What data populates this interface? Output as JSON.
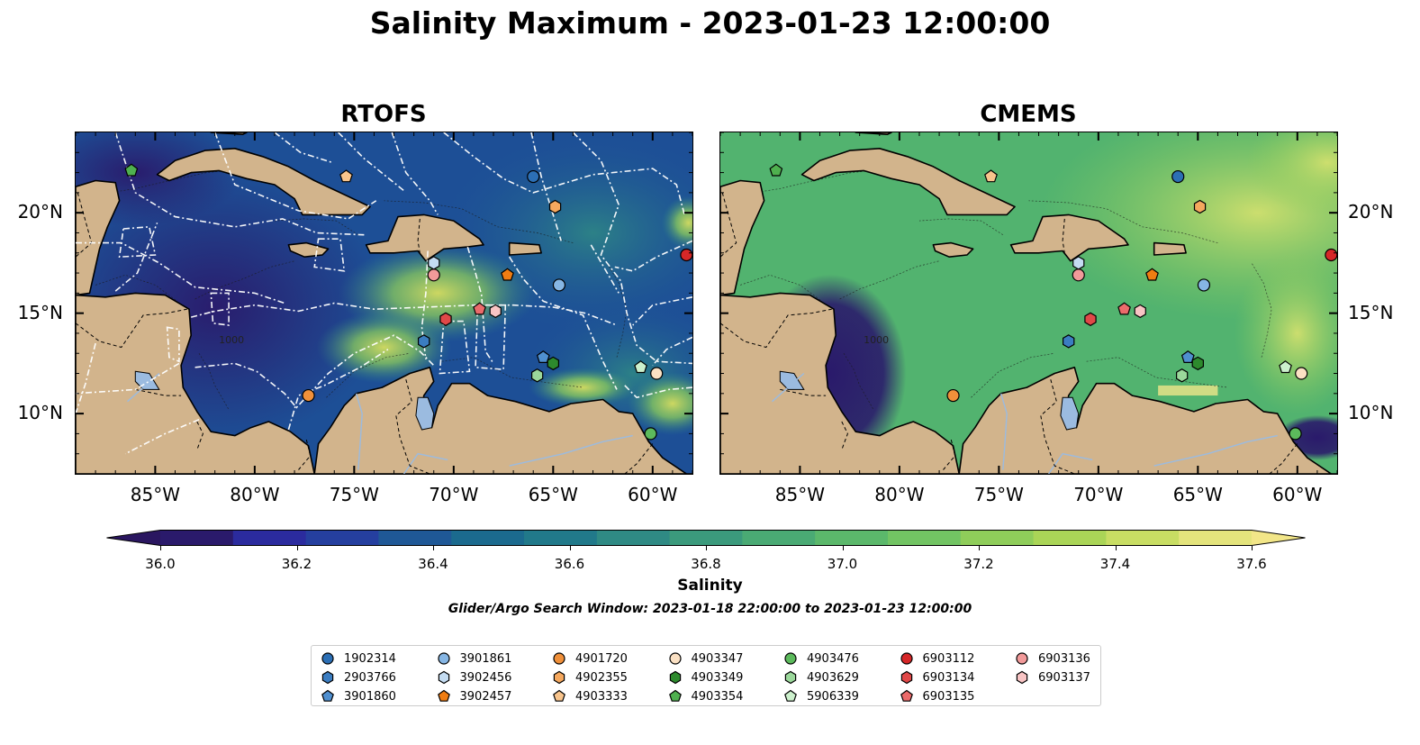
{
  "title": "Salinity Maximum - 2023-01-23 12:00:00",
  "panels": [
    {
      "title": "RTOFS",
      "style": "rtofs"
    },
    {
      "title": "CMEMS",
      "style": "cmems"
    }
  ],
  "map_extent": {
    "lon": [
      -89,
      -58
    ],
    "lat": [
      7,
      24
    ]
  },
  "x_ticks": [
    {
      "lon": -85,
      "label": "85°W"
    },
    {
      "lon": -80,
      "label": "80°W"
    },
    {
      "lon": -75,
      "label": "75°W"
    },
    {
      "lon": -70,
      "label": "70°W"
    },
    {
      "lon": -65,
      "label": "65°W"
    },
    {
      "lon": -60,
      "label": "60°W"
    }
  ],
  "y_ticks": [
    {
      "lat": 20,
      "label": "20°N"
    },
    {
      "lat": 15,
      "label": "15°N"
    },
    {
      "lat": 10,
      "label": "10°N"
    }
  ],
  "colorbar": {
    "label": "Salinity",
    "min": 36.0,
    "max": 37.6,
    "ticks": [
      "36.0",
      "36.2",
      "36.4",
      "36.6",
      "36.8",
      "37.0",
      "37.2",
      "37.4",
      "37.6"
    ],
    "colors": [
      "#2a1a6b",
      "#2b2b9e",
      "#253f9f",
      "#1f5896",
      "#1b6a8e",
      "#21798a",
      "#2f8a84",
      "#3b9a7c",
      "#4aaa74",
      "#5bb86b",
      "#72c463",
      "#8fcd5a",
      "#aad557",
      "#c8dd63",
      "#e4e47c"
    ],
    "under_color": "#2a1660",
    "over_color": "#f2e688"
  },
  "search_window": "Glider/Argo Search Window: 2023-01-18 22:00:00 to 2023-01-23 12:00:00",
  "contour_label": "1000",
  "land_color": "#d2b48c",
  "lake_color": "#9bbbe0",
  "floats": [
    {
      "id": "1902314",
      "marker": "circle",
      "color": "#2c6fb5",
      "lon": -66.0,
      "lat": 21.8
    },
    {
      "id": "2903766",
      "marker": "hexagon",
      "color": "#3b7dc1",
      "lon": -71.5,
      "lat": 13.6
    },
    {
      "id": "3901860",
      "marker": "pentagon",
      "color": "#4f8fcf",
      "lon": -65.5,
      "lat": 12.8
    },
    {
      "id": "3901861",
      "marker": "circle",
      "color": "#86b6e4",
      "lon": -64.7,
      "lat": 16.4
    },
    {
      "id": "3902456",
      "marker": "hexagon",
      "color": "#c4dcf2",
      "lon": -71.0,
      "lat": 17.5
    },
    {
      "id": "3902457",
      "marker": "pentagon",
      "color": "#f07d12",
      "lon": -67.3,
      "lat": 16.9
    },
    {
      "id": "4901720",
      "marker": "circle",
      "color": "#f0903a",
      "lon": -77.3,
      "lat": 10.9
    },
    {
      "id": "4902355",
      "marker": "hexagon",
      "color": "#f5a85e",
      "lon": -64.9,
      "lat": 20.3
    },
    {
      "id": "4903333",
      "marker": "pentagon",
      "color": "#f8c48c",
      "lon": -75.4,
      "lat": 21.8
    },
    {
      "id": "4903347",
      "marker": "circle",
      "color": "#fbe1c4",
      "lon": -59.8,
      "lat": 12.0
    },
    {
      "id": "4903349",
      "marker": "hexagon",
      "color": "#2d8a2d",
      "lon": -65.0,
      "lat": 12.5
    },
    {
      "id": "4903354",
      "marker": "pentagon",
      "color": "#4fb04f",
      "lon": -86.2,
      "lat": 22.1
    },
    {
      "id": "4903476",
      "marker": "circle",
      "color": "#5cba5c",
      "lon": -60.1,
      "lat": 9.0
    },
    {
      "id": "4903629",
      "marker": "hexagon",
      "color": "#9bd89b",
      "lon": -65.8,
      "lat": 11.9
    },
    {
      "id": "5906339",
      "marker": "pentagon",
      "color": "#ccf0cc",
      "lon": -60.6,
      "lat": 12.3
    },
    {
      "id": "6903112",
      "marker": "circle",
      "color": "#d62728",
      "lon": -58.3,
      "lat": 17.9
    },
    {
      "id": "6903134",
      "marker": "hexagon",
      "color": "#e04848",
      "lon": -70.4,
      "lat": 14.7
    },
    {
      "id": "6903135",
      "marker": "pentagon",
      "color": "#eb6b6b",
      "lon": -68.7,
      "lat": 15.2
    },
    {
      "id": "6903136",
      "marker": "circle",
      "color": "#f29a9a",
      "lon": -71.0,
      "lat": 16.9
    },
    {
      "id": "6903137",
      "marker": "hexagon",
      "color": "#f8c4c4",
      "lon": -67.9,
      "lat": 15.1
    }
  ]
}
